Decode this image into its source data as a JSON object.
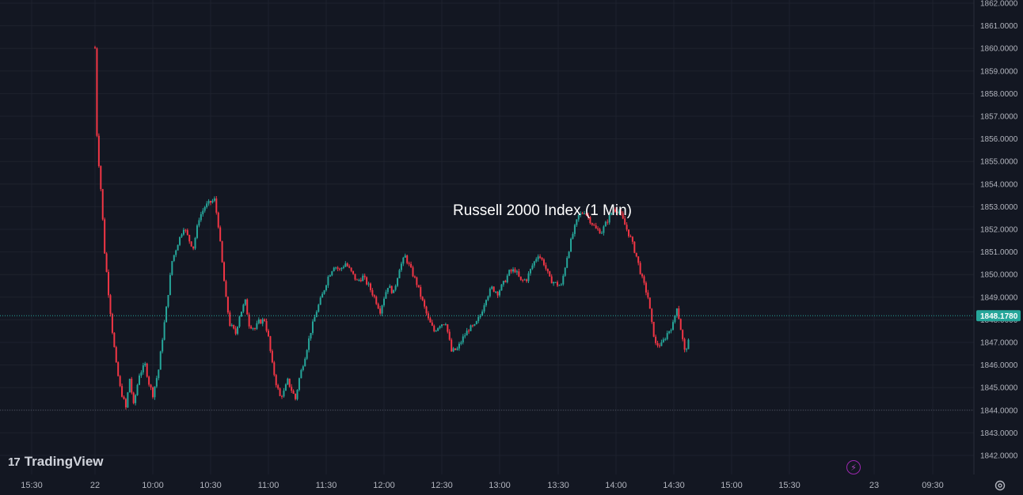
{
  "brand": {
    "logo": "17",
    "name": "TradingView"
  },
  "last_price_label": "1848.1780",
  "colors": {
    "background": "#131722",
    "up": "#26a69a",
    "down": "#f23645",
    "grid": "#1e222d",
    "price_line": "#26a69a"
  },
  "icons": {
    "bolt": "bolt-icon",
    "settings": "settings-icon"
  },
  "chart_data": {
    "type": "candlestick",
    "title": "Russell 2000 Index (1 Min)",
    "ylim": [
      1841.6,
      1862.0
    ],
    "y_ticks": [
      "1842.0000",
      "1843.0000",
      "1844.0000",
      "1845.0000",
      "1846.0000",
      "1847.0000",
      "1848.0000",
      "1849.0000",
      "1850.0000",
      "1851.0000",
      "1852.0000",
      "1853.0000",
      "1854.0000",
      "1855.0000",
      "1856.0000",
      "1857.0000",
      "1858.0000",
      "1859.0000",
      "1860.0000",
      "1861.0000",
      "1862.0000"
    ],
    "x_ticks": [
      "15:30",
      "22",
      "10:00",
      "10:30",
      "11:00",
      "11:30",
      "12:00",
      "12:30",
      "13:00",
      "13:30",
      "14:00",
      "14:30",
      "15:00",
      "15:30",
      "23",
      "09:30"
    ],
    "last_price": 1848.178,
    "low_reference": 1844.0,
    "close_path": [
      [
        "09:30",
        1860.0
      ],
      [
        "09:31",
        1856.2
      ],
      [
        "09:32",
        1854.9
      ],
      [
        "09:33",
        1853.8
      ],
      [
        "09:35",
        1851.0
      ],
      [
        "09:37",
        1849.2
      ],
      [
        "09:39",
        1847.5
      ],
      [
        "09:41",
        1846.0
      ],
      [
        "09:43",
        1845.0
      ],
      [
        "09:46",
        1844.1
      ],
      [
        "09:48",
        1845.4
      ],
      [
        "09:50",
        1844.2
      ],
      [
        "09:53",
        1845.6
      ],
      [
        "09:56",
        1846.0
      ],
      [
        "09:58",
        1845.2
      ],
      [
        "10:00",
        1844.7
      ],
      [
        "10:03",
        1845.8
      ],
      [
        "10:05",
        1847.2
      ],
      [
        "10:07",
        1848.5
      ],
      [
        "10:10",
        1850.6
      ],
      [
        "10:13",
        1851.4
      ],
      [
        "10:16",
        1852.1
      ],
      [
        "10:19",
        1851.5
      ],
      [
        "10:21",
        1851.2
      ],
      [
        "10:24",
        1852.5
      ],
      [
        "10:27",
        1853.0
      ],
      [
        "10:30",
        1853.2
      ],
      [
        "10:32",
        1853.3
      ],
      [
        "10:34",
        1852.2
      ],
      [
        "10:36",
        1850.5
      ],
      [
        "10:38",
        1848.9
      ],
      [
        "10:40",
        1847.8
      ],
      [
        "10:43",
        1847.4
      ],
      [
        "10:45",
        1848.2
      ],
      [
        "10:48",
        1848.8
      ],
      [
        "10:50",
        1847.8
      ],
      [
        "10:53",
        1847.6
      ],
      [
        "10:55",
        1847.9
      ],
      [
        "10:58",
        1848.0
      ],
      [
        "11:00",
        1847.2
      ],
      [
        "11:02",
        1846.0
      ],
      [
        "11:04",
        1845.2
      ],
      [
        "11:06",
        1844.6
      ],
      [
        "11:08",
        1844.8
      ],
      [
        "11:10",
        1845.3
      ],
      [
        "11:12",
        1844.9
      ],
      [
        "11:14",
        1844.5
      ],
      [
        "11:16",
        1845.4
      ],
      [
        "11:19",
        1846.4
      ],
      [
        "11:22",
        1847.5
      ],
      [
        "11:25",
        1848.4
      ],
      [
        "11:28",
        1849.1
      ],
      [
        "11:31",
        1849.9
      ],
      [
        "11:34",
        1850.4
      ],
      [
        "11:37",
        1850.2
      ],
      [
        "11:40",
        1850.5
      ],
      [
        "11:43",
        1850.1
      ],
      [
        "11:46",
        1849.7
      ],
      [
        "11:49",
        1849.9
      ],
      [
        "11:52",
        1849.5
      ],
      [
        "11:55",
        1849.0
      ],
      [
        "11:58",
        1848.4
      ],
      [
        "12:00",
        1849.0
      ],
      [
        "12:02",
        1849.5
      ],
      [
        "12:05",
        1849.2
      ],
      [
        "12:08",
        1850.3
      ],
      [
        "12:11",
        1850.8
      ],
      [
        "12:14",
        1850.2
      ],
      [
        "12:17",
        1849.6
      ],
      [
        "12:20",
        1848.8
      ],
      [
        "12:23",
        1848.0
      ],
      [
        "12:26",
        1847.5
      ],
      [
        "12:29",
        1847.8
      ],
      [
        "12:32",
        1847.9
      ],
      [
        "12:35",
        1846.6
      ],
      [
        "12:38",
        1846.7
      ],
      [
        "12:41",
        1847.2
      ],
      [
        "12:44",
        1847.6
      ],
      [
        "12:47",
        1847.7
      ],
      [
        "12:50",
        1848.2
      ],
      [
        "12:53",
        1849.0
      ],
      [
        "12:56",
        1849.4
      ],
      [
        "12:59",
        1849.2
      ],
      [
        "13:02",
        1849.6
      ],
      [
        "13:05",
        1850.1
      ],
      [
        "13:08",
        1850.2
      ],
      [
        "13:11",
        1849.7
      ],
      [
        "13:14",
        1849.8
      ],
      [
        "13:17",
        1850.4
      ],
      [
        "13:20",
        1850.9
      ],
      [
        "13:23",
        1850.5
      ],
      [
        "13:26",
        1849.8
      ],
      [
        "13:29",
        1849.6
      ],
      [
        "13:32",
        1849.5
      ],
      [
        "13:35",
        1850.8
      ],
      [
        "13:38",
        1851.8
      ],
      [
        "13:41",
        1852.6
      ],
      [
        "13:44",
        1852.8
      ],
      [
        "13:47",
        1852.4
      ],
      [
        "13:50",
        1852.0
      ],
      [
        "13:53",
        1851.9
      ],
      [
        "13:56",
        1852.4
      ],
      [
        "13:59",
        1852.9
      ],
      [
        "14:02",
        1852.8
      ],
      [
        "14:05",
        1852.2
      ],
      [
        "14:08",
        1851.6
      ],
      [
        "14:11",
        1850.8
      ],
      [
        "14:14",
        1849.8
      ],
      [
        "14:17",
        1849.0
      ],
      [
        "14:19",
        1847.8
      ],
      [
        "14:21",
        1846.9
      ],
      [
        "14:24",
        1846.9
      ],
      [
        "14:27",
        1847.4
      ],
      [
        "14:30",
        1847.8
      ],
      [
        "14:32",
        1848.6
      ],
      [
        "14:34",
        1847.6
      ],
      [
        "14:36",
        1846.6
      ],
      [
        "14:38",
        1847.0
      ]
    ]
  }
}
